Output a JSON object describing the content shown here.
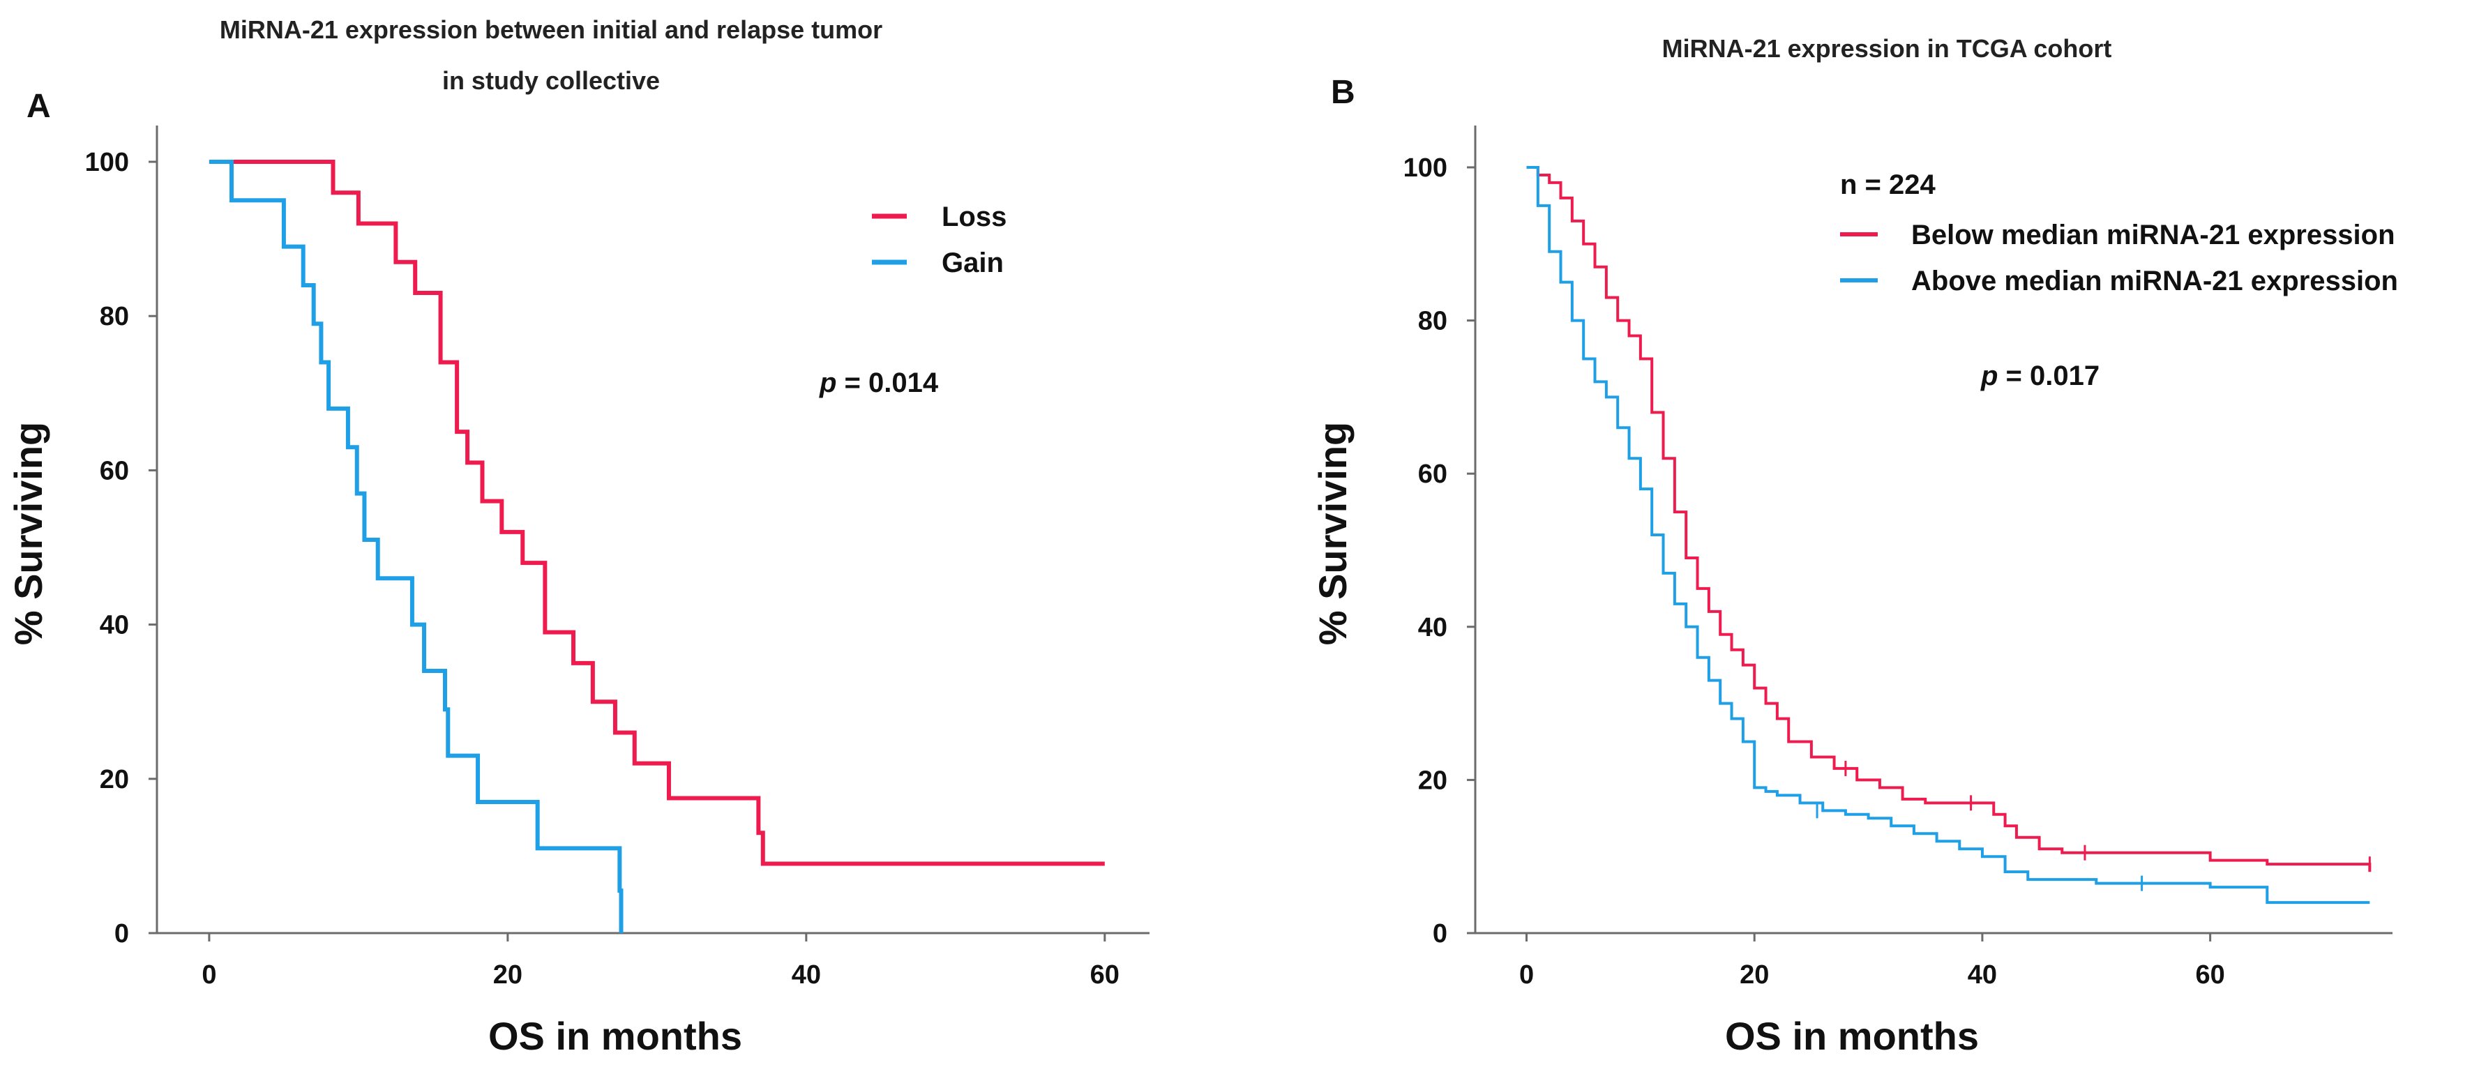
{
  "chart_data": [
    {
      "type": "line",
      "panel_label": "A",
      "title_lines": [
        "MiRNA-21 expression between initial and relapse tumor",
        "in study collective"
      ],
      "xlabel": "OS in months",
      "ylabel": "% Surviving",
      "xlim": [
        -3.5,
        63
      ],
      "ylim": [
        0,
        100
      ],
      "xticks": [
        0,
        20,
        40,
        60
      ],
      "yticks": [
        0,
        20,
        40,
        60,
        80,
        100
      ],
      "annotation": {
        "prefix": "p",
        "text": " = 0.014"
      },
      "series": [
        {
          "name": "Loss",
          "color": "#ee1c4e",
          "x": [
            0,
            8.3,
            10,
            12.5,
            13.8,
            15.5,
            16.6,
            17.3,
            18.3,
            19.6,
            21,
            22.5,
            24.4,
            25.7,
            27.2,
            28.5,
            30.8,
            36.8,
            37.1,
            60
          ],
          "y": [
            100,
            96,
            92,
            87,
            83,
            74,
            65,
            61,
            56,
            52,
            48,
            39,
            35,
            30,
            26,
            22,
            17.5,
            13,
            9,
            9
          ],
          "censored": []
        },
        {
          "name": "Gain",
          "color": "#1f9fe6",
          "x": [
            0,
            1.5,
            5,
            6.3,
            7,
            7.5,
            8,
            9.3,
            9.9,
            10.4,
            11.3,
            13.6,
            14.4,
            15.8,
            16,
            18,
            22,
            27.5
          ],
          "y": [
            100,
            95,
            89,
            84,
            79,
            74,
            68,
            63,
            57,
            51,
            46,
            40,
            34,
            29,
            23,
            17,
            11,
            5.5
          ],
          "end_x": 27.6,
          "end_y": 0,
          "censored": []
        }
      ]
    },
    {
      "type": "line",
      "panel_label": "B",
      "title_lines": [
        "MiRNA-21 expression in TCGA cohort"
      ],
      "xlabel": "OS in months",
      "ylabel": "% Surviving",
      "xlim": [
        -4.5,
        76
      ],
      "ylim": [
        0,
        102
      ],
      "xticks": [
        0,
        20,
        40,
        60
      ],
      "yticks": [
        0,
        20,
        40,
        60,
        80,
        100
      ],
      "n_label": "n = 224",
      "annotation": {
        "prefix": "p",
        "text": " = 0.017"
      },
      "series": [
        {
          "name": "Below median miRNA-21 expression",
          "color": "#ee1c4e",
          "x": [
            0,
            1,
            2,
            3,
            4,
            5,
            6,
            7,
            8,
            9,
            10,
            11,
            12,
            13,
            14,
            15,
            16,
            17,
            18,
            19,
            20,
            21,
            22,
            23,
            25,
            27,
            29,
            31,
            33,
            35,
            38,
            40,
            41,
            42,
            43,
            45,
            47,
            50,
            55,
            60,
            65,
            70,
            74
          ],
          "y": [
            100,
            99,
            98,
            96,
            93,
            90,
            87,
            83,
            80,
            78,
            75,
            68,
            62,
            55,
            49,
            45,
            42,
            39,
            37,
            35,
            32,
            30,
            28,
            25,
            23,
            21.5,
            20,
            19,
            17.5,
            17,
            17,
            17,
            15.5,
            14,
            12.5,
            11,
            10.5,
            10.5,
            10.5,
            9.5,
            9,
            9,
            8
          ],
          "censored": [
            [
              28,
              21.5
            ],
            [
              39,
              17
            ],
            [
              49,
              10.5
            ],
            [
              74,
              9
            ]
          ]
        },
        {
          "name": "Above median miRNA-21 expression",
          "color": "#1f9fe6",
          "x": [
            0,
            1,
            2,
            3,
            4,
            5,
            6,
            7,
            8,
            9,
            10,
            11,
            12,
            13,
            14,
            15,
            16,
            17,
            18,
            19,
            20,
            21,
            22,
            24,
            26,
            28,
            30,
            32,
            34,
            36,
            38,
            40,
            42,
            44,
            50,
            55,
            60,
            64,
            65,
            70,
            74
          ],
          "y": [
            100,
            95,
            89,
            85,
            80,
            75,
            72,
            70,
            66,
            62,
            58,
            52,
            47,
            43,
            40,
            36,
            33,
            30,
            28,
            25,
            19,
            18.5,
            18,
            17,
            16,
            15.5,
            15,
            14,
            13,
            12,
            11,
            10,
            8,
            7,
            6.5,
            6.5,
            6,
            6,
            4,
            4,
            4
          ],
          "censored": [
            [
              25.5,
              16
            ],
            [
              54,
              6.5
            ]
          ]
        }
      ]
    }
  ]
}
